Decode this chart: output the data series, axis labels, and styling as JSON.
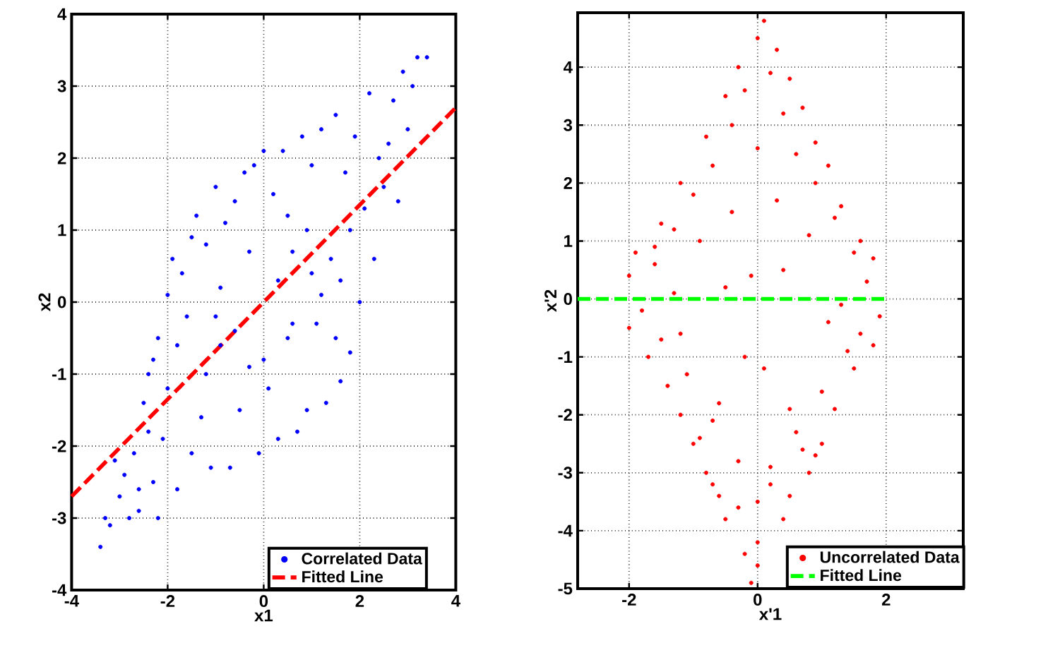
{
  "chart_data": [
    {
      "type": "scatter",
      "xlabel": "x1",
      "ylabel": "x2",
      "xlim": [
        -4,
        4
      ],
      "ylim": [
        -4,
        4
      ],
      "xticks": [
        -4,
        -2,
        0,
        2,
        4
      ],
      "yticks": [
        -4,
        -3,
        -2,
        -1,
        0,
        1,
        2,
        3,
        4
      ],
      "grid": true,
      "legend": "bottom right",
      "series": [
        {
          "name": "Correlated Data",
          "color": "#0000ff",
          "marker": "circle",
          "x": [
            -3.4,
            -3.3,
            -3.2,
            -3.0,
            -3.1,
            -2.9,
            -2.8,
            -2.7,
            -2.6,
            -2.5,
            -2.6,
            -2.4,
            -2.3,
            -2.2,
            -2.3,
            -2.1,
            -2.0,
            -2.0,
            -1.9,
            -1.8,
            -2.2,
            -1.7,
            -1.6,
            -1.5,
            -1.4,
            -1.3,
            -1.2,
            -1.1,
            -1.0,
            -0.9,
            -0.8,
            -0.7,
            -0.6,
            -0.5,
            -0.4,
            -0.3,
            -0.2,
            -0.1,
            0.0,
            0.1,
            0.2,
            0.3,
            0.4,
            0.5,
            0.6,
            0.7,
            0.8,
            0.9,
            1.0,
            1.1,
            1.2,
            1.3,
            1.4,
            1.5,
            1.6,
            1.7,
            1.8,
            1.9,
            2.0,
            2.1,
            2.2,
            2.3,
            2.4,
            2.5,
            2.6,
            2.7,
            2.8,
            2.9,
            3.0,
            3.1,
            3.2,
            3.4,
            -1.8,
            -1.5,
            -1.2,
            -0.9,
            -0.6,
            -0.3,
            0.0,
            0.3,
            0.6,
            0.9,
            1.2,
            1.5,
            1.8,
            -2.4,
            -1.0,
            0.5,
            1.0,
            1.6
          ],
          "values": [
            -3.4,
            -3.0,
            -3.1,
            -2.7,
            -2.2,
            -2.4,
            -3.0,
            -2.1,
            -2.6,
            -1.4,
            -2.9,
            -1.8,
            -0.8,
            -0.5,
            -2.5,
            -1.9,
            0.1,
            -1.2,
            0.6,
            -2.6,
            -3.0,
            0.4,
            -0.2,
            -2.1,
            1.2,
            -1.6,
            0.8,
            -2.3,
            1.6,
            -0.6,
            1.1,
            -2.3,
            1.4,
            -1.5,
            1.8,
            -0.9,
            1.9,
            -2.1,
            2.1,
            -1.2,
            1.5,
            -1.9,
            2.1,
            -0.5,
            0.7,
            -1.8,
            2.3,
            -1.5,
            1.9,
            -0.3,
            2.4,
            -1.4,
            0.6,
            2.6,
            -1.1,
            1.8,
            -0.7,
            2.3,
            0.0,
            1.3,
            2.9,
            0.6,
            2.0,
            1.6,
            2.2,
            2.8,
            1.4,
            3.2,
            2.4,
            3.0,
            3.4,
            3.4,
            -0.6,
            0.9,
            -1.0,
            0.2,
            -0.4,
            0.7,
            -0.8,
            0.3,
            -0.3,
            1.0,
            0.1,
            -0.5,
            1.0,
            -1.0,
            -0.2,
            1.2,
            0.4,
            0.3
          ]
        },
        {
          "name": "Fitted Line",
          "type": "line",
          "line_style": "dashed",
          "marker": "none",
          "color": "#ff0000",
          "x": [
            -4,
            4
          ],
          "values": [
            -2.7,
            2.7
          ]
        }
      ]
    },
    {
      "type": "scatter",
      "xlabel": "x'1",
      "ylabel": "x'2",
      "xlim": [
        -2.8,
        3.2
      ],
      "ylim": [
        -5,
        4.94
      ],
      "xticks": [
        -2,
        0,
        2
      ],
      "yticks": [
        -5,
        -4,
        -3,
        -2,
        -1,
        0,
        1,
        2,
        3,
        4
      ],
      "grid": true,
      "legend": "bottom right",
      "series": [
        {
          "name": "Uncorrelated Data",
          "color": "#ff0000",
          "marker": "circle",
          "x": [
            0.1,
            0.0,
            0.3,
            -0.3,
            0.5,
            -0.5,
            0.7,
            -0.8,
            0.9,
            -1.2,
            1.1,
            1.3,
            -1.5,
            -1.9,
            1.6,
            1.8,
            -2.0,
            -2.0,
            1.9,
            1.8,
            -1.7,
            1.5,
            -1.4,
            -1.2,
            1.2,
            -1.0,
            1.0,
            -0.8,
            0.8,
            -0.6,
            -0.5,
            0.0,
            -0.2,
            0.0,
            -0.1,
            0.4,
            -0.2,
            0.2,
            -0.4,
            0.4,
            -0.7,
            0.6,
            -1.0,
            0.9,
            -1.3,
            1.2,
            -1.6,
            1.5,
            -1.8,
            1.7,
            -1.5,
            1.4,
            -1.1,
            1.0,
            -0.7,
            0.6,
            -0.3,
            0.2,
            0.0,
            -0.9,
            0.8,
            -0.5,
            0.4,
            -1.2,
            1.1,
            -0.2,
            0.1,
            -0.6,
            0.5,
            -1.3,
            1.3,
            -0.9,
            0.7,
            -0.4,
            0.3,
            -1.6,
            1.6,
            -0.1,
            0.0,
            0.2,
            -0.3,
            0.5,
            -0.7,
            0.9
          ],
          "values": [
            4.8,
            4.5,
            4.3,
            4.0,
            3.8,
            3.5,
            3.3,
            2.8,
            2.7,
            2.0,
            2.3,
            1.6,
            1.3,
            0.8,
            1.0,
            0.7,
            0.4,
            -0.5,
            -0.3,
            -0.8,
            -1.0,
            -1.2,
            -1.5,
            -2.0,
            -1.9,
            -2.5,
            -2.5,
            -3.0,
            -3.0,
            -3.4,
            -3.8,
            -4.2,
            -4.4,
            -4.6,
            -4.9,
            -3.8,
            3.6,
            3.9,
            3.0,
            3.2,
            2.3,
            2.5,
            1.8,
            2.0,
            1.2,
            1.4,
            0.6,
            0.8,
            -0.2,
            0.3,
            -0.7,
            -0.9,
            -1.3,
            -1.6,
            -2.1,
            -2.3,
            -2.8,
            -2.9,
            2.6,
            1.0,
            1.1,
            0.2,
            0.5,
            -0.6,
            -0.4,
            -1.0,
            -1.2,
            -1.8,
            -1.9,
            0.1,
            -0.1,
            -2.4,
            -2.6,
            1.5,
            1.7,
            0.9,
            -0.6,
            0.4,
            -3.5,
            -3.2,
            -3.6,
            -3.4,
            -3.2,
            -2.7
          ]
        },
        {
          "name": "Fitted Line",
          "type": "line",
          "line_style": "dashed",
          "marker": "none",
          "color": "#00ff00",
          "x": [
            -2.8,
            2
          ],
          "values": [
            0,
            0
          ]
        }
      ]
    }
  ]
}
